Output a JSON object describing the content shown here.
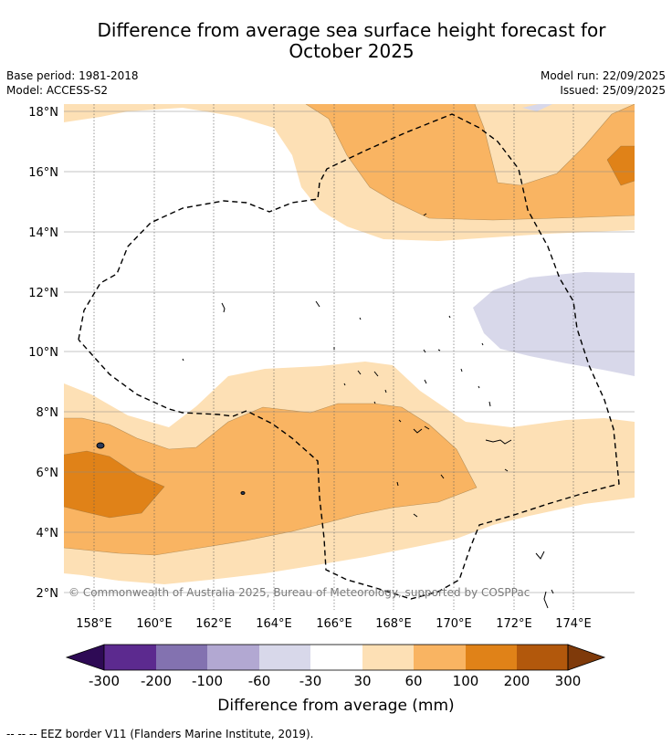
{
  "title_line1": "Difference from average sea surface height forecast for",
  "title_line2": "October 2025",
  "base_period": "Base period: 1981-2018",
  "model": "Model: ACCESS-S2",
  "model_run": "Model run: 22/09/2025",
  "issued": "Issued: 25/09/2025",
  "copyright": "© Commonwealth of Australia 2025, Bureau of Meteorology, supported by COSPPac",
  "lon_labels": [
    "158°E",
    "160°E",
    "162°E",
    "164°E",
    "166°E",
    "168°E",
    "170°E",
    "172°E",
    "174°E"
  ],
  "lat_labels": [
    "18°N",
    "16°N",
    "14°N",
    "12°N",
    "10°N",
    "8°N",
    "6°N",
    "4°N",
    "2°N"
  ],
  "colorbar": {
    "ticks": [
      "-300",
      "-200",
      "-100",
      "-60",
      "-30",
      "30",
      "60",
      "100",
      "200",
      "300"
    ],
    "colors": [
      "#2e0a55",
      "#5c2a8f",
      "#8372b0",
      "#b2a8d2",
      "#d8d8ea",
      "#ffffff",
      "#fde0b5",
      "#f9b462",
      "#e08218",
      "#b2580c",
      "#7f3a0a"
    ],
    "label": "Difference from average (mm)"
  },
  "legend": "-- -- -- EEZ border V11 (Flanders Marine Institute, 2019)."
}
